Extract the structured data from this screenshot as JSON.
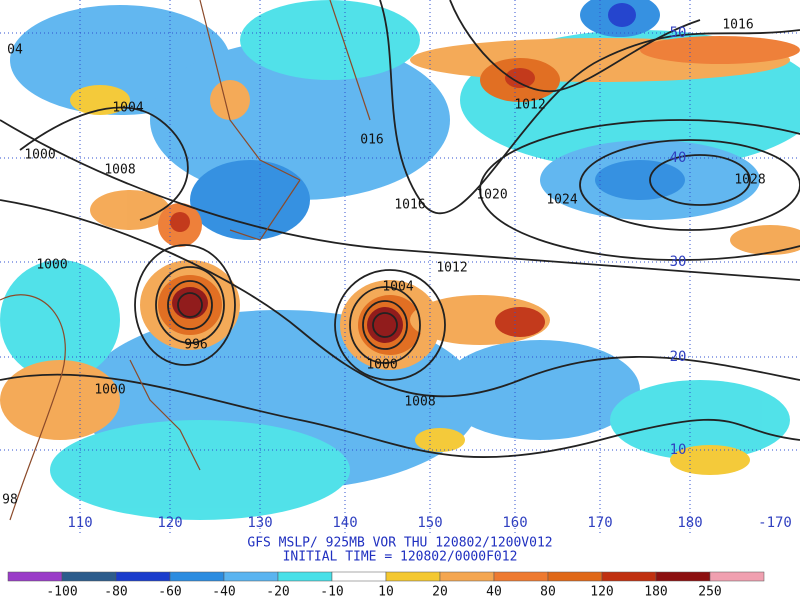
{
  "map": {
    "title_line1": "GFS MSLP/ 925MB VOR THU 120802/1200V012",
    "title_line2": "INITIAL TIME = 120802/0000F012",
    "longitude_labels": [
      "110",
      "120",
      "130",
      "140",
      "150",
      "160",
      "170",
      "180",
      "-170"
    ],
    "latitude_labels": [
      "50",
      "40",
      "30",
      "20",
      "10"
    ],
    "isobar_labels": [
      "1016",
      "1012",
      "016",
      "1000",
      "1008",
      "1004",
      "1020",
      "1024",
      "1028",
      "1016",
      "1012",
      "1004",
      "1000",
      "1008",
      "1000",
      "996",
      "1000",
      "04",
      "98"
    ],
    "colorbar": {
      "labels": [
        "-100",
        "-80",
        "-60",
        "-40",
        "-20",
        "-10",
        "10",
        "20",
        "40",
        "80",
        "120",
        "180",
        "250"
      ],
      "colors": [
        "#9a3cc8",
        "#2c5c8c",
        "#1a3ccc",
        "#2c8ce0",
        "#5ab4f0",
        "#48e0e8",
        "#ffffff",
        "#f4c830",
        "#f4a650",
        "#ee7a30",
        "#e06818",
        "#c03010",
        "#8c1010",
        "#f0a0b0"
      ]
    }
  }
}
